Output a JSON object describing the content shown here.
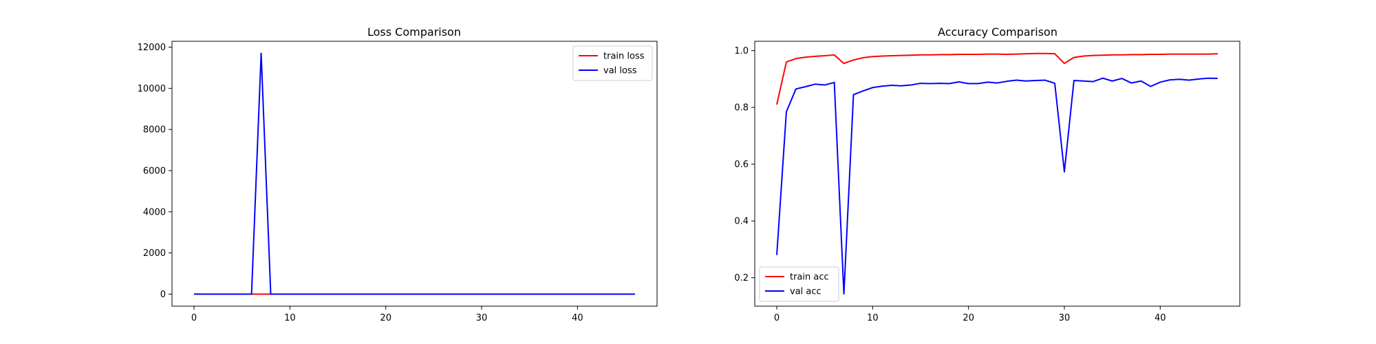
{
  "chart_data": [
    {
      "type": "line",
      "title": "Loss Comparison",
      "xlabel": "",
      "ylabel": "",
      "xlim": [
        -2.3,
        48.3
      ],
      "ylim": [
        -585,
        12285
      ],
      "xticks": [
        0,
        10,
        20,
        30,
        40
      ],
      "yticks": [
        0,
        2000,
        4000,
        6000,
        8000,
        10000,
        12000
      ],
      "grid": false,
      "legend": "upper right",
      "series": [
        {
          "name": "train loss",
          "color": "#ff0000",
          "x": [
            0,
            1,
            2,
            3,
            4,
            5,
            6,
            7,
            8,
            9,
            10,
            11,
            12,
            13,
            14,
            15,
            16,
            17,
            18,
            19,
            20,
            21,
            22,
            23,
            24,
            25,
            26,
            27,
            28,
            29,
            30,
            31,
            32,
            33,
            34,
            35,
            36,
            37,
            38,
            39,
            40,
            41,
            42,
            43,
            44,
            45,
            46
          ],
          "y": [
            1,
            0.2,
            0.15,
            0.12,
            0.1,
            0.09,
            0.08,
            0.2,
            0.15,
            0.1,
            0.09,
            0.08,
            0.07,
            0.07,
            0.06,
            0.06,
            0.05,
            0.05,
            0.05,
            0.04,
            0.04,
            0.04,
            0.04,
            0.04,
            0.04,
            0.04,
            0.03,
            0.03,
            0.03,
            0.03,
            0.2,
            0.1,
            0.08,
            0.06,
            0.05,
            0.05,
            0.04,
            0.04,
            0.04,
            0.03,
            0.03,
            0.03,
            0.03,
            0.03,
            0.03,
            0.03,
            0.03
          ]
        },
        {
          "name": "val loss",
          "color": "#0000ff",
          "x": [
            0,
            1,
            2,
            3,
            4,
            5,
            6,
            7,
            8,
            9,
            10,
            11,
            12,
            13,
            14,
            15,
            16,
            17,
            18,
            19,
            20,
            21,
            22,
            23,
            24,
            25,
            26,
            27,
            28,
            29,
            30,
            31,
            32,
            33,
            34,
            35,
            36,
            37,
            38,
            39,
            40,
            41,
            42,
            43,
            44,
            45,
            46
          ],
          "y": [
            3,
            1,
            0.5,
            0.5,
            0.5,
            0.5,
            0.5,
            11700,
            5,
            0.6,
            0.5,
            0.5,
            0.5,
            0.5,
            0.5,
            0.5,
            0.5,
            0.5,
            0.5,
            0.5,
            0.5,
            0.5,
            0.5,
            0.5,
            0.5,
            0.5,
            0.5,
            0.5,
            0.5,
            0.5,
            2,
            0.5,
            0.5,
            0.5,
            0.5,
            0.5,
            0.5,
            0.5,
            0.5,
            0.5,
            0.5,
            0.5,
            0.5,
            0.5,
            0.5,
            0.5,
            0.5
          ]
        }
      ]
    },
    {
      "type": "line",
      "title": "Accuracy Comparison",
      "xlabel": "",
      "ylabel": "",
      "xlim": [
        -2.3,
        48.3
      ],
      "ylim": [
        0.1,
        1.033
      ],
      "xticks": [
        0,
        10,
        20,
        30,
        40
      ],
      "yticks": [
        0.2,
        0.4,
        0.6,
        0.8,
        1.0
      ],
      "grid": false,
      "legend": "lower left",
      "series": [
        {
          "name": "train acc",
          "color": "#ff0000",
          "x": [
            0,
            1,
            2,
            3,
            4,
            5,
            6,
            7,
            8,
            9,
            10,
            11,
            12,
            13,
            14,
            15,
            16,
            17,
            18,
            19,
            20,
            21,
            22,
            23,
            24,
            25,
            26,
            27,
            28,
            29,
            30,
            31,
            32,
            33,
            34,
            35,
            36,
            37,
            38,
            39,
            40,
            41,
            42,
            43,
            44,
            45,
            46
          ],
          "y": [
            0.81,
            0.96,
            0.972,
            0.977,
            0.98,
            0.982,
            0.985,
            0.955,
            0.967,
            0.975,
            0.979,
            0.981,
            0.982,
            0.983,
            0.984,
            0.985,
            0.985,
            0.986,
            0.986,
            0.987,
            0.987,
            0.987,
            0.988,
            0.988,
            0.987,
            0.988,
            0.989,
            0.99,
            0.99,
            0.989,
            0.955,
            0.976,
            0.981,
            0.983,
            0.984,
            0.985,
            0.985,
            0.986,
            0.986,
            0.987,
            0.987,
            0.988,
            0.988,
            0.988,
            0.988,
            0.988,
            0.989
          ]
        },
        {
          "name": "val acc",
          "color": "#0000ff",
          "x": [
            0,
            1,
            2,
            3,
            4,
            5,
            6,
            7,
            8,
            9,
            10,
            11,
            12,
            13,
            14,
            15,
            16,
            17,
            18,
            19,
            20,
            21,
            22,
            23,
            24,
            25,
            26,
            27,
            28,
            29,
            30,
            31,
            32,
            33,
            34,
            35,
            36,
            37,
            38,
            39,
            40,
            41,
            42,
            43,
            44,
            45,
            46
          ],
          "y": [
            0.28,
            0.785,
            0.865,
            0.873,
            0.882,
            0.879,
            0.888,
            0.143,
            0.845,
            0.858,
            0.87,
            0.875,
            0.878,
            0.876,
            0.879,
            0.885,
            0.884,
            0.885,
            0.884,
            0.89,
            0.884,
            0.884,
            0.889,
            0.886,
            0.892,
            0.896,
            0.893,
            0.895,
            0.896,
            0.885,
            0.573,
            0.895,
            0.893,
            0.891,
            0.903,
            0.893,
            0.902,
            0.886,
            0.893,
            0.874,
            0.889,
            0.897,
            0.899,
            0.896,
            0.9,
            0.903,
            0.902
          ]
        }
      ]
    }
  ]
}
